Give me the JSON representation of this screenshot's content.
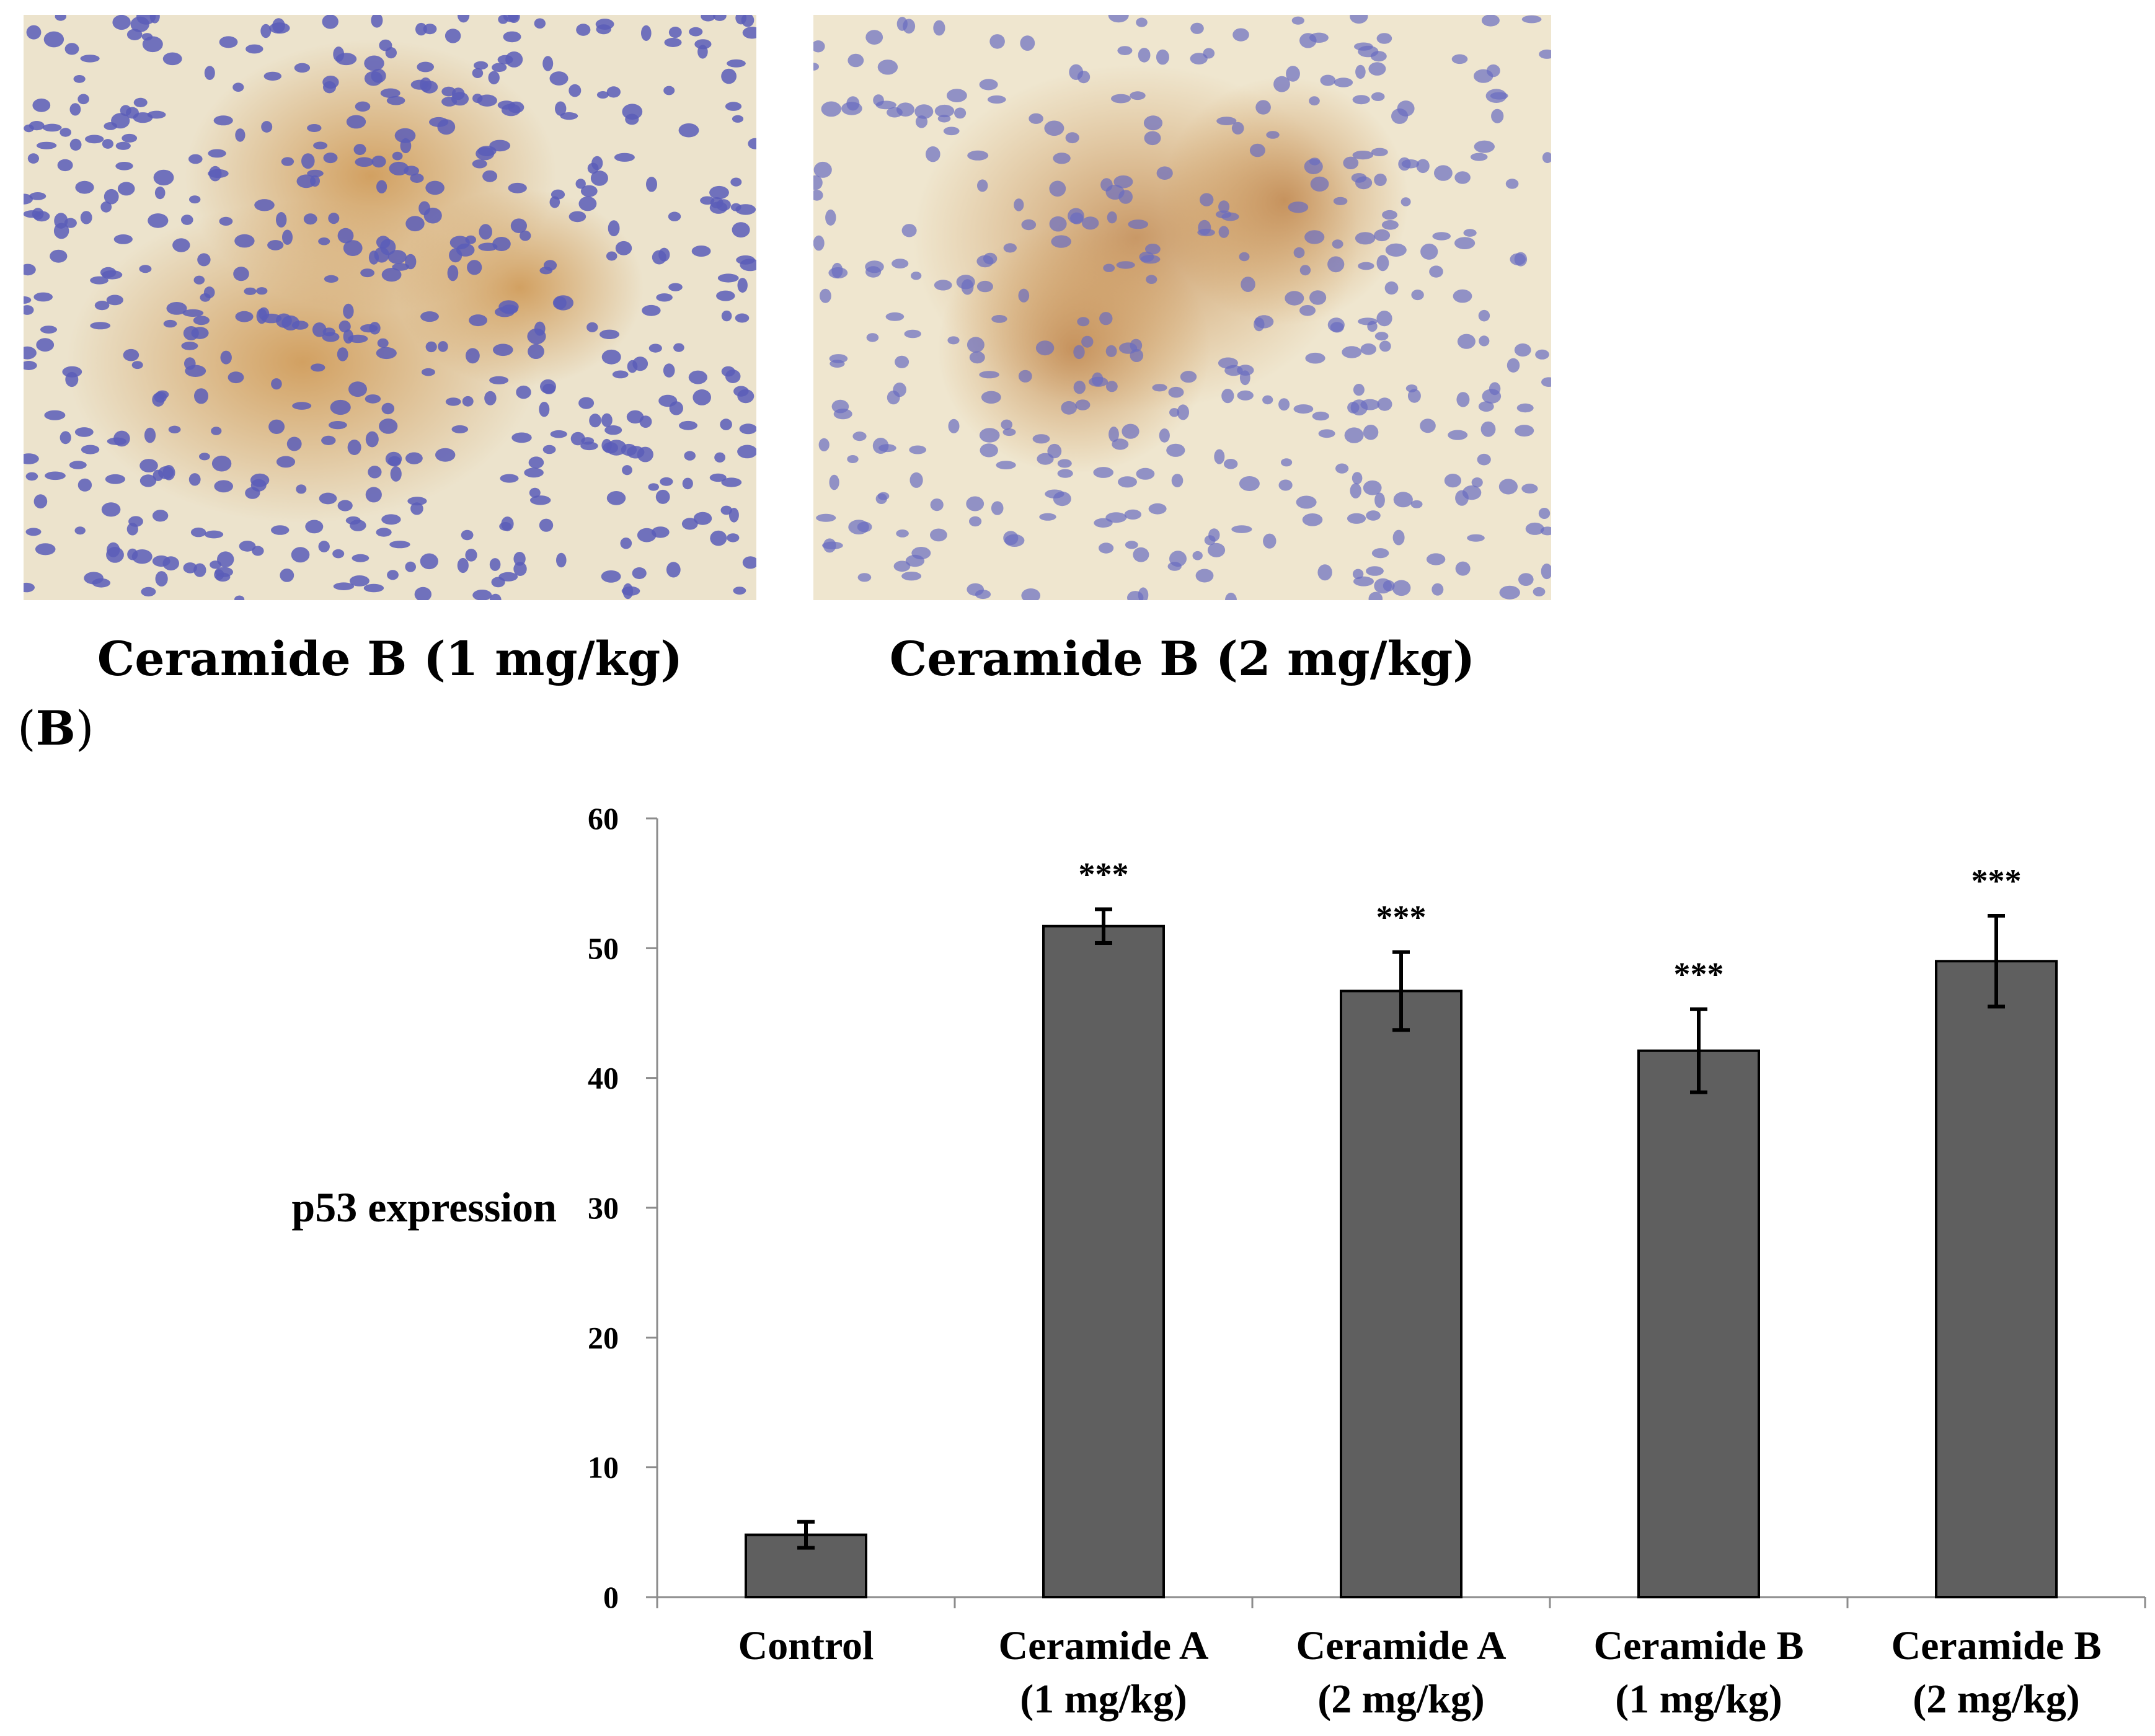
{
  "images": [
    {
      "caption": "Ceramide B (1 mg/kg)"
    },
    {
      "caption": "Ceramide B (2 mg/kg)"
    }
  ],
  "panel_label": {
    "open": "(",
    "letter": "B",
    "close": ")"
  },
  "colors": {
    "bar": "#5f5f5f",
    "tissue_bg": "#efe6cf",
    "nuclei": "#5a5db8",
    "stain": "#c98a3e"
  },
  "chart_data": {
    "type": "bar",
    "categories": [
      [
        "Control"
      ],
      [
        "Ceramide A",
        "(1 mg/kg)"
      ],
      [
        "Ceramide A",
        "(2 mg/kg)"
      ],
      [
        "Ceramide B",
        "(1 mg/kg)"
      ],
      [
        "Ceramide B",
        "(2 mg/kg)"
      ]
    ],
    "values": [
      4.8,
      51.7,
      46.7,
      42.1,
      49.0
    ],
    "errors": [
      1.0,
      1.3,
      3.0,
      3.2,
      3.5
    ],
    "annotations": [
      "",
      "***",
      "***",
      "***",
      "***"
    ],
    "ylabel": "p53 expression",
    "xlabel": "",
    "ylim": [
      0,
      60
    ],
    "yticks": [
      0,
      10,
      20,
      30,
      40,
      50,
      60
    ],
    "grid": false
  }
}
